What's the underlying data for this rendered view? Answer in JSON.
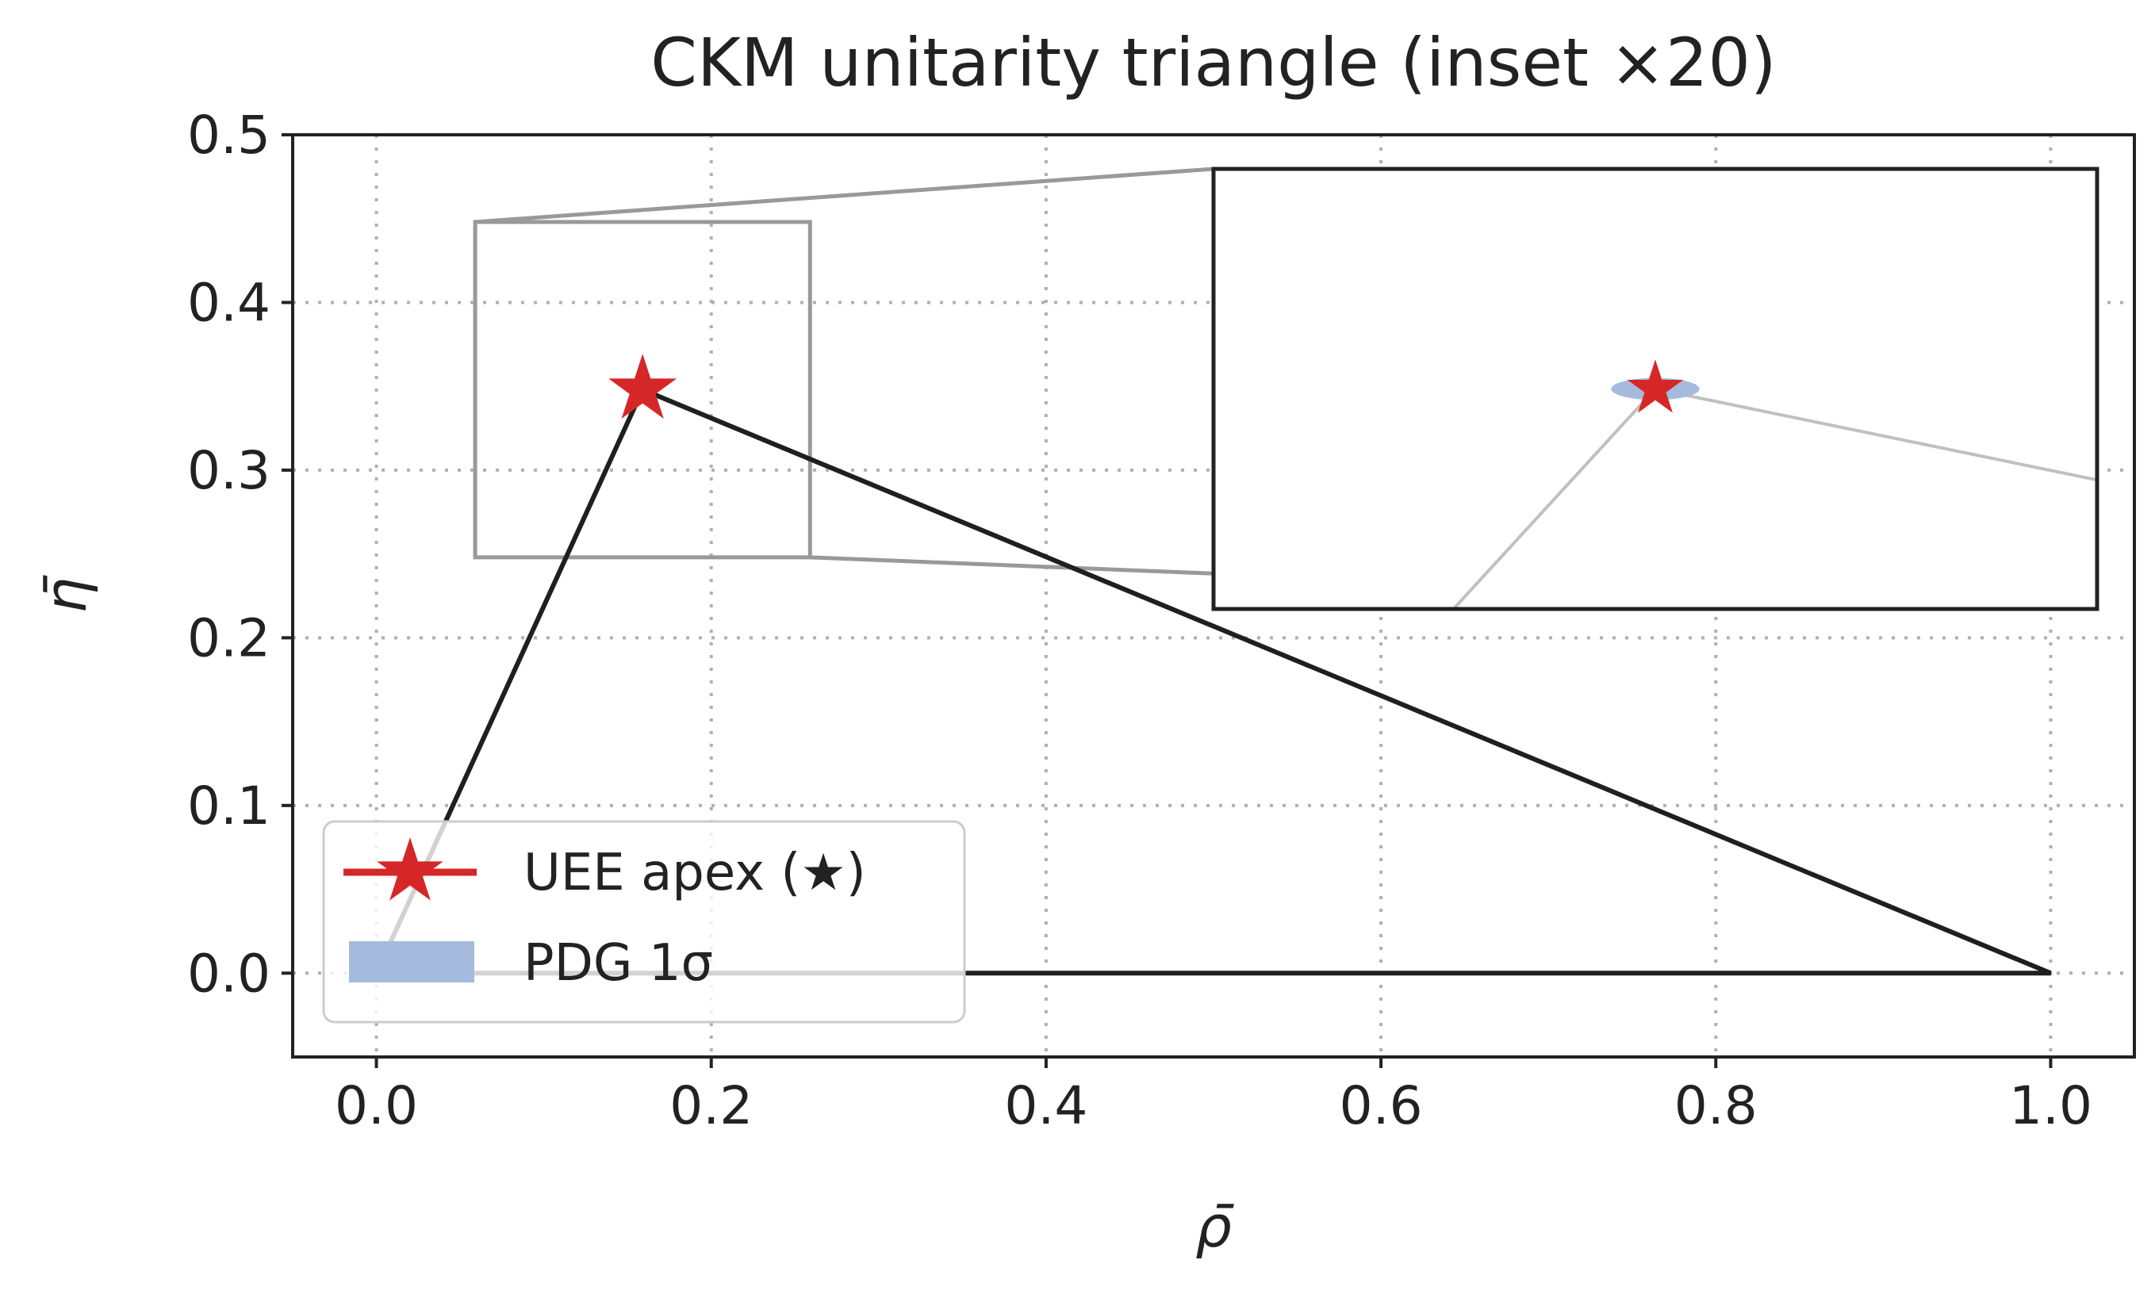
{
  "chart_data": {
    "type": "line",
    "title": "CKM unitarity triangle  (inset ×20)",
    "xlabel": "ρ̄",
    "ylabel": "η̄",
    "xlim": [
      -0.05,
      1.05
    ],
    "ylim": [
      -0.05,
      0.5
    ],
    "xticks": [
      0.0,
      0.2,
      0.4,
      0.6,
      0.8,
      1.0
    ],
    "xtick_labels": [
      "0.0",
      "0.2",
      "0.4",
      "0.6",
      "0.8",
      "1.0"
    ],
    "yticks": [
      0.0,
      0.1,
      0.2,
      0.3,
      0.4,
      0.5
    ],
    "ytick_labels": [
      "0.0",
      "0.1",
      "0.2",
      "0.3",
      "0.4",
      "0.5"
    ],
    "grid": true,
    "triangle": {
      "vertices": [
        [
          0.0,
          0.0
        ],
        [
          1.0,
          0.0
        ],
        [
          0.159,
          0.348
        ]
      ],
      "color": "#1f1f1f"
    },
    "apex": {
      "name": "UEE apex (★)",
      "x": 0.159,
      "y": 0.348,
      "color": "#d62728"
    },
    "pdg_region": {
      "name": "PDG 1σ",
      "center": [
        0.159,
        0.348
      ],
      "sigma_rho": 0.01,
      "sigma_eta": 0.005,
      "color": "#a4bbde"
    },
    "inset": {
      "magnification": 20,
      "zoom_region": {
        "xlim": [
          0.059,
          0.259
        ],
        "ylim": [
          0.248,
          0.448
        ]
      },
      "frame_color": "#999999"
    },
    "legend": {
      "location": "lower-left",
      "entries": [
        "UEE apex (★)",
        "PDG 1σ"
      ]
    }
  },
  "colors": {
    "axis": "#222222",
    "grid": "#b0b0b0",
    "zoom_box": "#999999",
    "inset_lines": "#c0c0c0"
  }
}
